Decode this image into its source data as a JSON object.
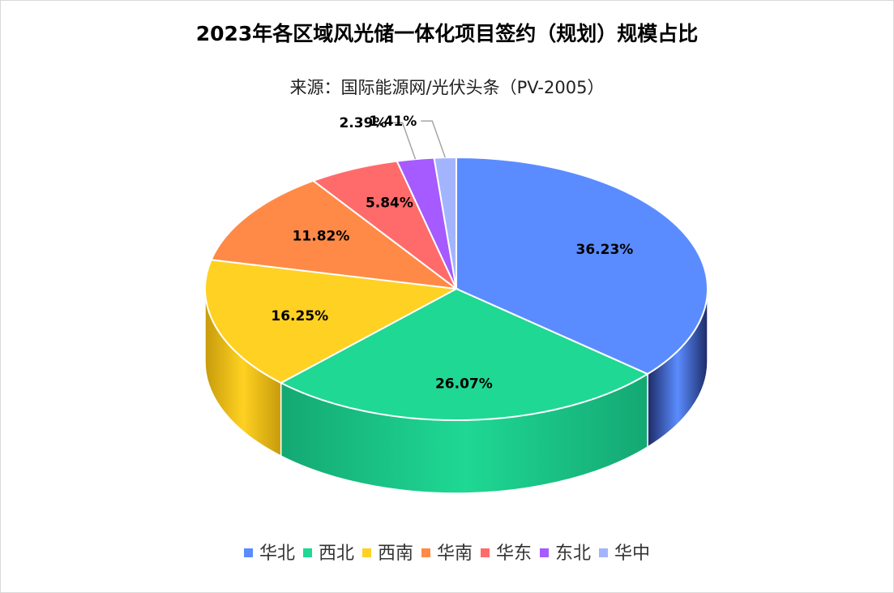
{
  "chart_data": {
    "type": "pie",
    "title": "2023年各区域风光储一体化项目签约（规划）规模占比",
    "subtitle": "来源：国际能源网/光伏头条（PV-2005）",
    "categories": [
      "华北",
      "西北",
      "西南",
      "华南",
      "华东",
      "东北",
      "华中"
    ],
    "values": [
      36.23,
      26.07,
      16.25,
      11.82,
      5.84,
      2.39,
      1.41
    ],
    "labels": [
      "36.23%",
      "26.07%",
      "16.25%",
      "11.82%",
      "5.84%",
      "2.39%",
      "1.41%"
    ],
    "colors": [
      "#5B8CFF",
      "#1FD894",
      "#FFD122",
      "#FF8A47",
      "#FF6B6B",
      "#A55BFF",
      "#A3B4FF"
    ],
    "side_colors": [
      "#1c2b66",
      "#14a873",
      "#c79b0c",
      "#c9652d",
      "#c94f4f",
      "#7a3fc7",
      "#7a88cc"
    ],
    "legend_position": "bottom",
    "style": "3d"
  }
}
